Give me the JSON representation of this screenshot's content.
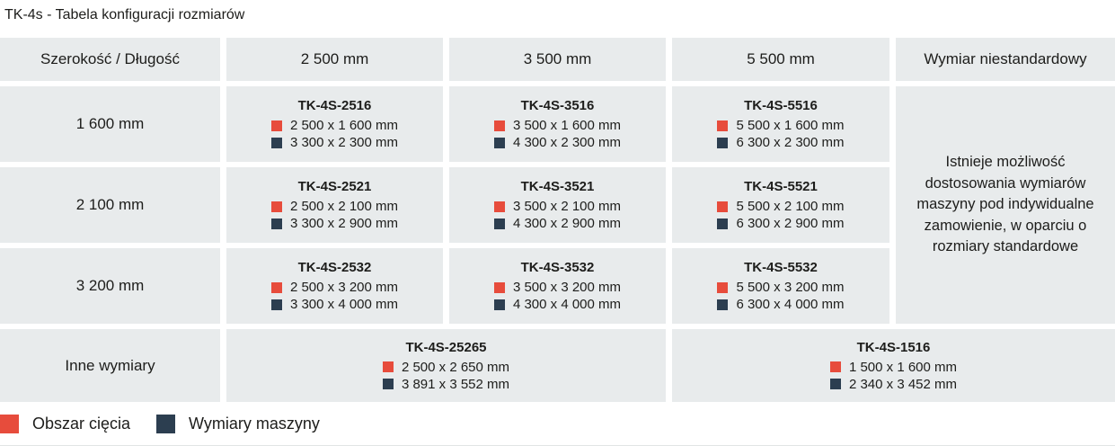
{
  "title": "TK-4s - Tabela konfiguracji rozmiarów",
  "colors": {
    "cutting_area": "#e74c3c",
    "machine_dimensions": "#2c3e50",
    "cell_background": "#e8ebec"
  },
  "table": {
    "header": [
      "Szerokość / Długość",
      "2 500 mm",
      "3 500 mm",
      "5 500 mm",
      "Wymiar niestandardowy"
    ],
    "rows": [
      {
        "label": "1 600 mm",
        "cells": [
          {
            "model": "TK-4S-2516",
            "cutting": "2 500 x 1 600 mm",
            "machine": "3 300 x 2 300 mm"
          },
          {
            "model": "TK-4S-3516",
            "cutting": "3 500 x 1 600 mm",
            "machine": "4 300 x 2 300 mm"
          },
          {
            "model": "TK-4S-5516",
            "cutting": "5 500 x 1 600 mm",
            "machine": "6 300 x 2 300 mm"
          }
        ]
      },
      {
        "label": "2 100 mm",
        "cells": [
          {
            "model": "TK-4S-2521",
            "cutting": "2 500 x 2 100 mm",
            "machine": "3 300 x 2 900 mm"
          },
          {
            "model": "TK-4S-3521",
            "cutting": "3 500 x 2 100 mm",
            "machine": "4 300 x 2 900 mm"
          },
          {
            "model": "TK-4S-5521",
            "cutting": "5 500 x 2 100 mm",
            "machine": "6 300 x 2 900 mm"
          }
        ]
      },
      {
        "label": "3 200 mm",
        "cells": [
          {
            "model": "TK-4S-2532",
            "cutting": "2 500 x 3 200 mm",
            "machine": "3 300 x 4 000 mm"
          },
          {
            "model": "TK-4S-3532",
            "cutting": "3 500 x 3 200 mm",
            "machine": "4 300 x 4 000 mm"
          },
          {
            "model": "TK-4S-5532",
            "cutting": "5 500 x 3 200 mm",
            "machine": "6 300 x 4 000 mm"
          }
        ]
      },
      {
        "label": "Inne wymiary",
        "cells": [
          {
            "model": "TK-4S-25265",
            "cutting": "2 500 x 2 650 mm",
            "machine": "3 891 x 3 552 mm"
          },
          {
            "model": "TK-4S-1516",
            "cutting": "1 500 x 1 600 mm",
            "machine": "2 340 x 3 452 mm"
          }
        ]
      }
    ],
    "note": "Istnieje możliwość dostosowania wymiarów maszyny pod indywidualne zamowienie, w oparciu o rozmiary standardowe"
  },
  "legend": {
    "items": [
      {
        "label": "Obszar cięcia"
      },
      {
        "label": "Wymiary maszyny"
      }
    ]
  }
}
